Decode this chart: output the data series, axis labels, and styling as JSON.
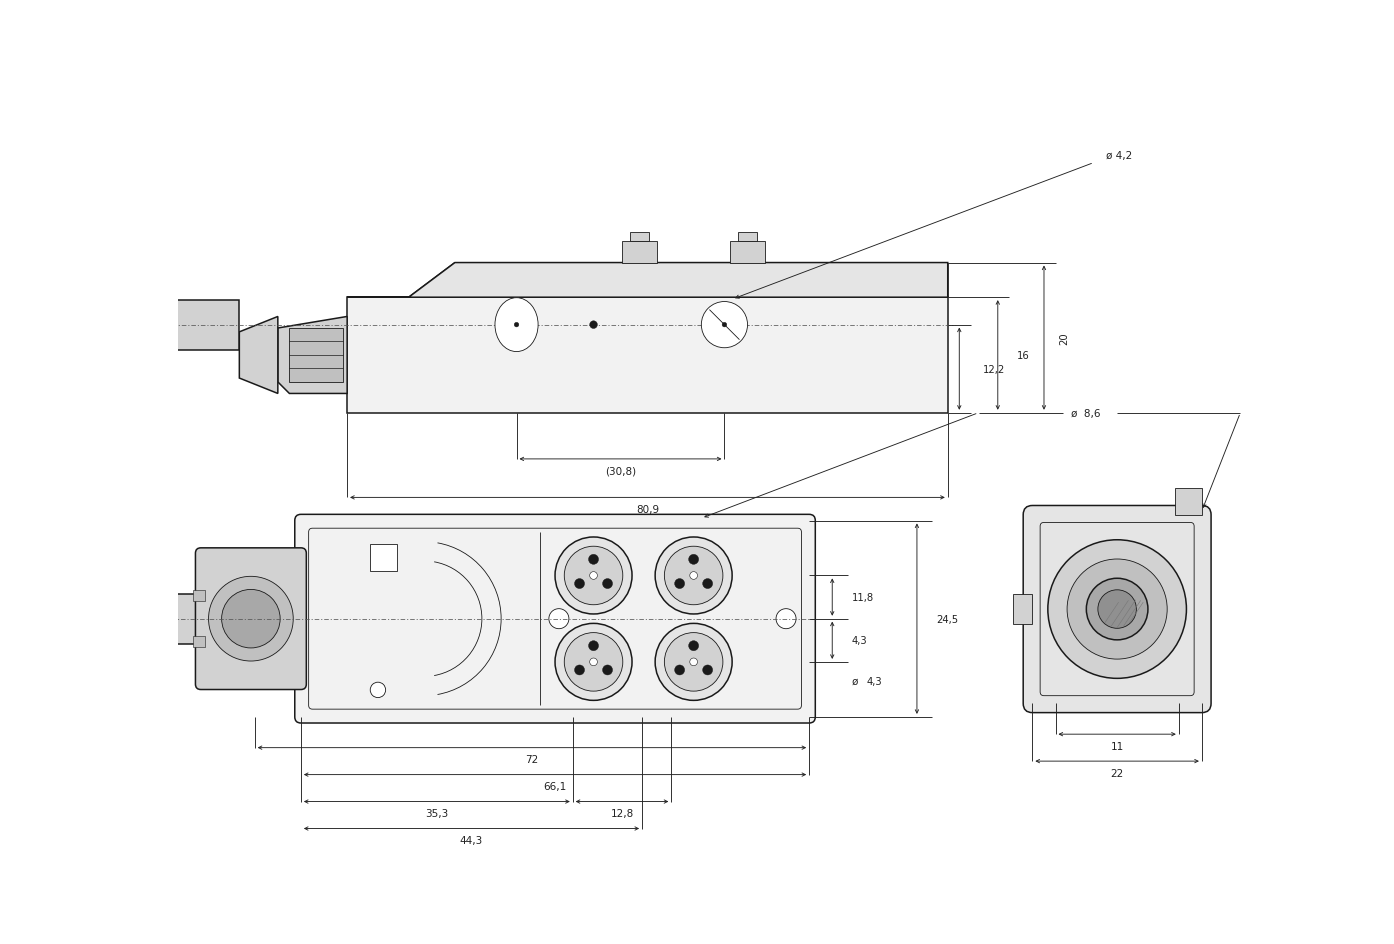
{
  "bg": "#ffffff",
  "lc": "#1a1a1a",
  "dc": "#222222",
  "g1": "#f2f2f2",
  "g2": "#e5e5e5",
  "g3": "#d2d2d2",
  "g4": "#c0c0c0",
  "g5": "#a8a8a8",
  "g6": "#909090",
  "top_labels": {
    "phi42": "ø 4,2",
    "d122": "12,2",
    "d16": "16",
    "d20": "20",
    "d308": "(30,8)",
    "d809": "80,9"
  },
  "front_labels": {
    "phi86": "ø  8,6",
    "d118": "11,8",
    "d43": "4,3",
    "phi43": "ø",
    "d245": "24,5",
    "d353": "35,3",
    "d128": "12,8",
    "d443": "44,3",
    "d661": "66,1",
    "d72": "72"
  },
  "side_labels": {
    "d11": "11",
    "d22": "22"
  }
}
